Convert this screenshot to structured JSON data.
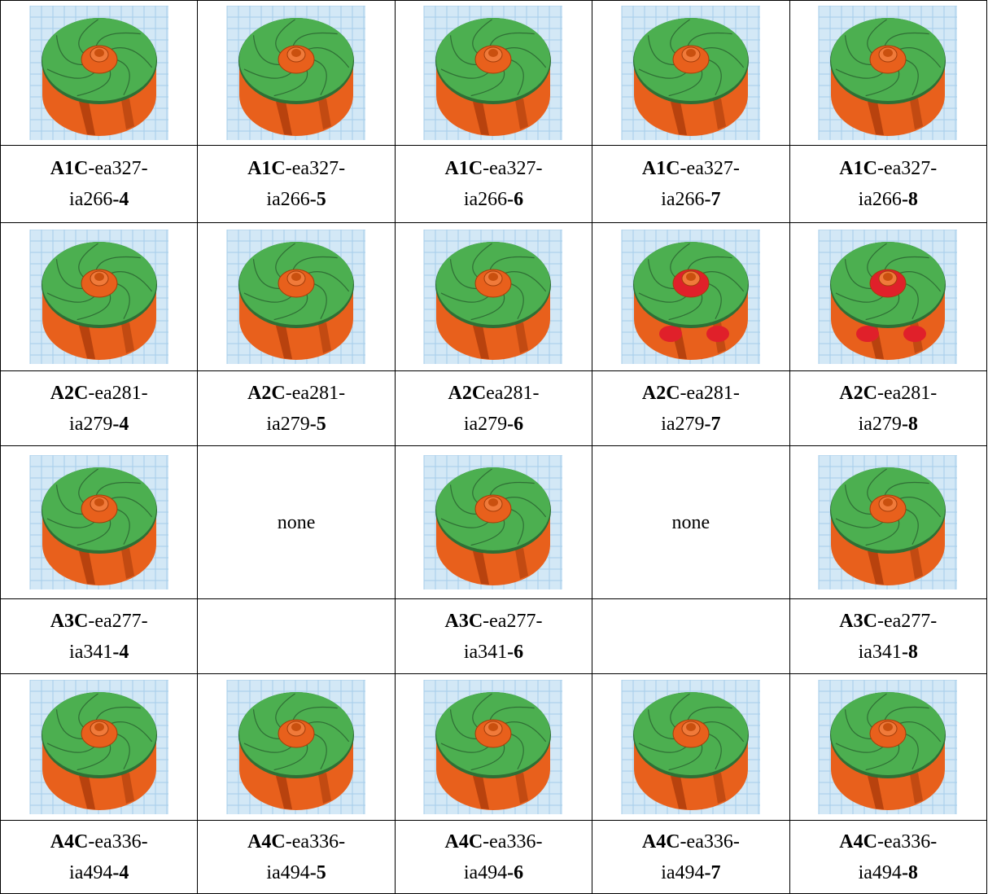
{
  "table": {
    "rows": [
      [
        null,
        null,
        null,
        null,
        null
      ],
      [
        [
          [
            {
              "t": "A1C",
              "b": true
            },
            {
              "t": "-ea327-"
            }
          ],
          [
            {
              "t": "ia266"
            },
            {
              "t": "-4",
              "b": true
            }
          ]
        ],
        [
          [
            {
              "t": "A1C",
              "b": true
            },
            {
              "t": "-ea327-"
            }
          ],
          [
            {
              "t": "ia266"
            },
            {
              "t": "-5",
              "b": true
            }
          ]
        ],
        [
          [
            {
              "t": "A1C",
              "b": true
            },
            {
              "t": "-ea327-"
            }
          ],
          [
            {
              "t": "ia266"
            },
            {
              "t": "-6",
              "b": true
            }
          ]
        ],
        [
          [
            {
              "t": "A1C",
              "b": true
            },
            {
              "t": "-ea327-"
            }
          ],
          [
            {
              "t": "ia266"
            },
            {
              "t": "-7",
              "b": true
            }
          ]
        ],
        [
          [
            {
              "t": "A1C",
              "b": true
            },
            {
              "t": "-ea327-"
            }
          ],
          [
            {
              "t": "ia266"
            },
            {
              "t": "-8",
              "b": true
            }
          ]
        ]
      ],
      [
        null,
        null,
        null,
        null,
        null
      ],
      [
        [
          [
            {
              "t": "A2C",
              "b": true
            },
            {
              "t": "-ea281-"
            }
          ],
          [
            {
              "t": "ia279"
            },
            {
              "t": "-4",
              "b": true
            }
          ]
        ],
        [
          [
            {
              "t": "A2C",
              "b": true
            },
            {
              "t": "-ea281-"
            }
          ],
          [
            {
              "t": "ia279"
            },
            {
              "t": "-5",
              "b": true
            }
          ]
        ],
        [
          [
            {
              "t": "A2C",
              "b": true
            },
            {
              "t": "ea281-"
            }
          ],
          [
            {
              "t": "ia279"
            },
            {
              "t": "-6",
              "b": true
            }
          ]
        ],
        [
          [
            {
              "t": "A2C",
              "b": true
            },
            {
              "t": "-ea281-"
            }
          ],
          [
            {
              "t": "ia279"
            },
            {
              "t": "-7",
              "b": true
            }
          ]
        ],
        [
          [
            {
              "t": "A2C",
              "b": true
            },
            {
              "t": "-ea281-"
            }
          ],
          [
            {
              "t": "ia279"
            },
            {
              "t": "-8",
              "b": true
            }
          ]
        ]
      ],
      [
        null,
        "none",
        null,
        "none",
        null
      ],
      [
        [
          [
            {
              "t": "A3C",
              "b": true
            },
            {
              "t": "-ea277-"
            }
          ],
          [
            {
              "t": "ia341"
            },
            {
              "t": "-4",
              "b": true
            }
          ]
        ],
        null,
        [
          [
            {
              "t": "A3C",
              "b": true
            },
            {
              "t": "-ea277-"
            }
          ],
          [
            {
              "t": "ia341"
            },
            {
              "t": "-6",
              "b": true
            }
          ]
        ],
        null,
        [
          [
            {
              "t": "A3C",
              "b": true
            },
            {
              "t": "-ea277-"
            }
          ],
          [
            {
              "t": "ia341"
            },
            {
              "t": "-8",
              "b": true
            }
          ]
        ]
      ],
      [
        null,
        null,
        null,
        null,
        null
      ],
      [
        [
          [
            {
              "t": "A4C",
              "b": true
            },
            {
              "t": "-ea336-"
            }
          ],
          [
            {
              "t": "ia494"
            },
            {
              "t": "-4",
              "b": true
            }
          ]
        ],
        [
          [
            {
              "t": "A4C",
              "b": true
            },
            {
              "t": "-ea336-"
            }
          ],
          [
            {
              "t": "ia494"
            },
            {
              "t": "-5",
              "b": true
            }
          ]
        ],
        [
          [
            {
              "t": "A4C",
              "b": true
            },
            {
              "t": "-ea336-"
            }
          ],
          [
            {
              "t": "ia494"
            },
            {
              "t": "-6",
              "b": true
            }
          ]
        ],
        [
          [
            {
              "t": "A4C",
              "b": true
            },
            {
              "t": "-ea336-"
            }
          ],
          [
            {
              "t": "ia494"
            },
            {
              "t": "-7",
              "b": true
            }
          ]
        ],
        [
          [
            {
              "t": "A4C",
              "b": true
            },
            {
              "t": "-ea336-"
            }
          ],
          [
            {
              "t": "ia494"
            },
            {
              "t": "-8",
              "b": true
            }
          ]
        ]
      ]
    ]
  }
}
